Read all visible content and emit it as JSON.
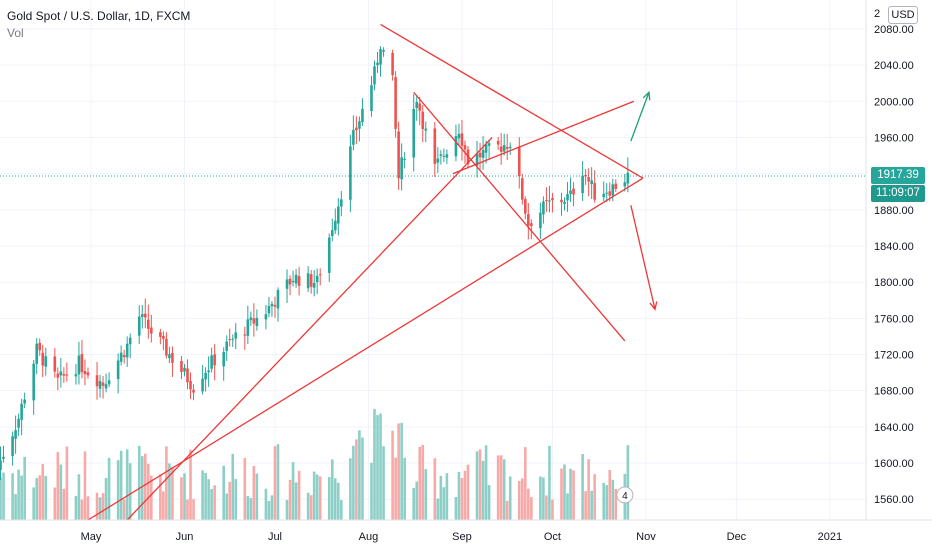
{
  "header": {
    "title": "Gold Spot / U.S. Dollar, 1D, FXCM",
    "vol_label": "Vol"
  },
  "currency_button": "USD",
  "last_price": "1917.39",
  "countdown": "11:09:07",
  "event_badge": "4",
  "colors": {
    "up": "#26a69a",
    "down": "#ef5350",
    "vol_up": "#8dcfc7",
    "vol_down": "#f7a9a7",
    "trend": "#ef3636",
    "arrow_up": "#1aa06e",
    "last_line": "#26a69a",
    "countdown_bg": "#1f998d",
    "axis_text": "#131722",
    "grid": "#f0f3fa"
  },
  "chart_data": {
    "type": "candlestick",
    "title": "Gold Spot / U.S. Dollar, 1D, FXCM",
    "y_ticks": [
      "1560.00",
      "1600.00",
      "1640.00",
      "1680.00",
      "1720.00",
      "1760.00",
      "1800.00",
      "1840.00",
      "1880.00",
      "1920.00",
      "1960.00",
      "2000.00",
      "2040.00",
      "2080.00"
    ],
    "y_range": [
      1537,
      2112
    ],
    "x_ticks": [
      {
        "label": "May",
        "day": 31
      },
      {
        "label": "Jun",
        "day": 62
      },
      {
        "label": "Jul",
        "day": 92
      },
      {
        "label": "Aug",
        "day": 123
      },
      {
        "label": "Sep",
        "day": 154
      },
      {
        "label": "Oct",
        "day": 184
      },
      {
        "label": "Nov",
        "day": 215
      },
      {
        "label": "Dec",
        "day": 245
      },
      {
        "label": "2021",
        "day": 276
      }
    ],
    "x_origin": "2020-04-01",
    "x_range": [
      0,
      300
    ],
    "price_series": [
      {
        "date": "2020-04-01",
        "close": 1595
      },
      {
        "date": "2020-04-08",
        "close": 1650
      },
      {
        "date": "2020-04-14",
        "close": 1725
      },
      {
        "date": "2020-04-21",
        "close": 1690
      },
      {
        "date": "2020-04-28",
        "close": 1710
      },
      {
        "date": "2020-05-06",
        "close": 1688
      },
      {
        "date": "2020-05-14",
        "close": 1730
      },
      {
        "date": "2020-05-18",
        "close": 1762
      },
      {
        "date": "2020-05-28",
        "close": 1720
      },
      {
        "date": "2020-06-05",
        "close": 1685
      },
      {
        "date": "2020-06-08",
        "close": 1700
      },
      {
        "date": "2020-06-19",
        "close": 1740
      },
      {
        "date": "2020-06-29",
        "close": 1768
      },
      {
        "date": "2020-07-08",
        "close": 1805
      },
      {
        "date": "2020-07-16",
        "close": 1800
      },
      {
        "date": "2020-07-24",
        "close": 1900
      },
      {
        "date": "2020-07-28",
        "close": 1960
      },
      {
        "date": "2020-08-04",
        "close": 2030
      },
      {
        "date": "2020-08-06",
        "close": 2065
      },
      {
        "date": "2020-08-10",
        "close": 2020
      },
      {
        "date": "2020-08-12",
        "close": 1915
      },
      {
        "date": "2020-08-18",
        "close": 2005
      },
      {
        "date": "2020-08-24",
        "close": 1925
      },
      {
        "date": "2020-09-01",
        "close": 1970
      },
      {
        "date": "2020-09-04",
        "close": 1935
      },
      {
        "date": "2020-09-11",
        "close": 1945
      },
      {
        "date": "2020-09-18",
        "close": 1955
      },
      {
        "date": "2020-09-24",
        "close": 1865
      },
      {
        "date": "2020-09-30",
        "close": 1885
      },
      {
        "date": "2020-10-08",
        "close": 1895
      },
      {
        "date": "2020-10-12",
        "close": 1925
      },
      {
        "date": "2020-10-16",
        "close": 1898
      },
      {
        "date": "2020-10-22",
        "close": 1905
      },
      {
        "date": "2020-10-27",
        "close": 1917
      }
    ],
    "volume_series": [],
    "trendlines": [
      {
        "from": [
          "2020-05-14",
          1537
        ],
        "to": [
          "2020-09-12",
          1960
        ]
      },
      {
        "from": [
          "2020-05-01",
          1537
        ],
        "to": [
          "2020-11-01",
          1915
        ]
      },
      {
        "from": [
          "2020-08-06",
          2085
        ],
        "to": [
          "2020-11-01",
          1915
        ]
      },
      {
        "from": [
          "2020-08-17",
          2010
        ],
        "to": [
          "2020-10-26",
          1735
        ]
      },
      {
        "from": [
          "2020-08-30",
          1920
        ],
        "to": [
          "2020-10-29",
          2000
        ]
      }
    ],
    "arrows": [
      {
        "from": [
          "2020-10-28",
          1956
        ],
        "to": [
          "2020-11-03",
          2010
        ]
      },
      {
        "from": [
          "2020-10-28",
          1885
        ],
        "to": [
          "2020-11-05",
          1770
        ]
      }
    ]
  }
}
